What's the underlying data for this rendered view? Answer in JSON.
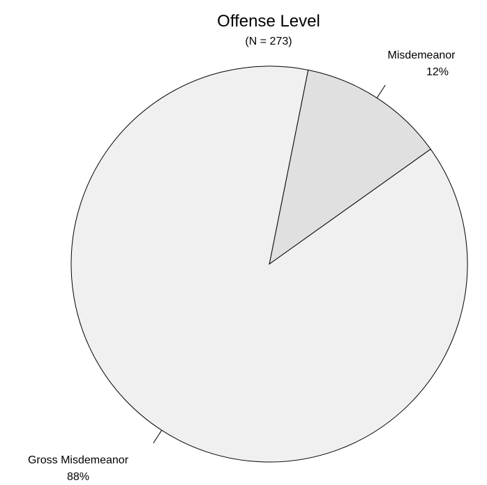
{
  "chart_data": {
    "type": "pie",
    "title": "Offense Level",
    "subtitle": "(N = 273)",
    "slices": [
      {
        "label": "Misdemeanor",
        "percent_label": "12%",
        "value": 12,
        "color": "#e0e0e0"
      },
      {
        "label": "Gross Misdemeanor",
        "percent_label": "88%",
        "value": 88,
        "color": "#f0f0f0"
      }
    ]
  }
}
